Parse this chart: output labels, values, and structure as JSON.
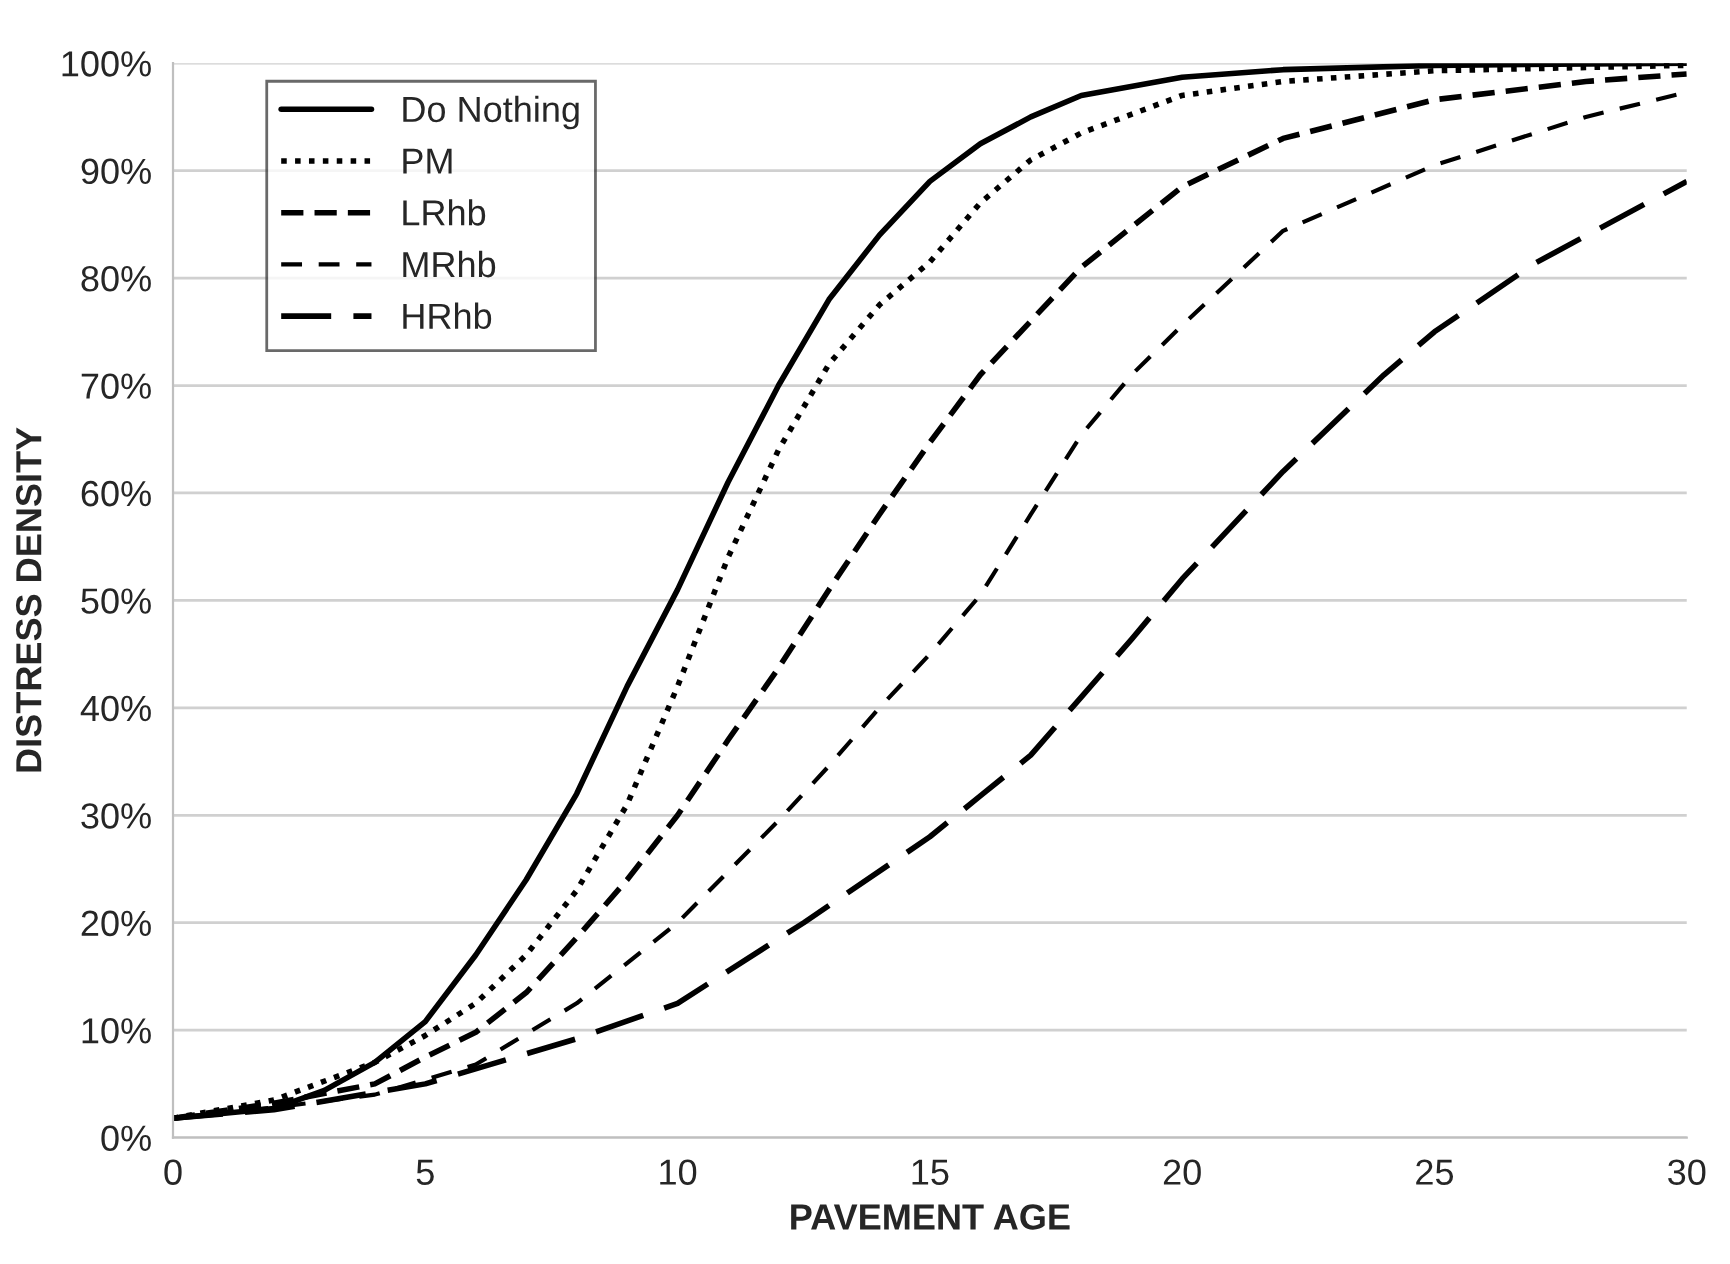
{
  "chart_data": {
    "type": "line",
    "xlabel": "PAVEMENT AGE",
    "ylabel": "DISTRESS DENSITY",
    "xlim": [
      0,
      30
    ],
    "xticks": [
      0,
      5,
      10,
      15,
      20,
      25,
      30
    ],
    "ylim": [
      0,
      100
    ],
    "yticks": [
      {
        "value": 0,
        "label": "0%"
      },
      {
        "value": 10,
        "label": "10%"
      },
      {
        "value": 20,
        "label": "20%"
      },
      {
        "value": 30,
        "label": "30%"
      },
      {
        "value": 40,
        "label": "40%"
      },
      {
        "value": 50,
        "label": "50%"
      },
      {
        "value": 60,
        "label": "60%"
      },
      {
        "value": 70,
        "label": "70%"
      },
      {
        "value": 80,
        "label": "80%"
      },
      {
        "value": 90,
        "label": "90%"
      },
      {
        "value": 100,
        "label": "100%"
      }
    ],
    "grid": "y",
    "legend": "top left",
    "marker": "none",
    "series": [
      {
        "name": "Do Nothing",
        "color": "#000000",
        "line_style": "solid",
        "x": [
          0,
          2,
          3,
          4,
          5,
          6,
          7,
          8,
          9,
          10,
          11,
          12,
          13,
          14,
          15,
          16,
          17,
          18,
          20,
          22,
          25,
          30
        ],
        "values": [
          1.8,
          2.7,
          4.4,
          7,
          10.8,
          17,
          24,
          32,
          42,
          51,
          61,
          70,
          78,
          84,
          89,
          92.5,
          95,
          97,
          98.7,
          99.4,
          99.8,
          100
        ]
      },
      {
        "name": "PM",
        "color": "#000000",
        "line_style": "dotted",
        "x": [
          0,
          2,
          4,
          5,
          6,
          7,
          8,
          9,
          10,
          11,
          12,
          13,
          14,
          15,
          16,
          17,
          18,
          20,
          22,
          25,
          30
        ],
        "values": [
          1.8,
          3.5,
          7,
          9.5,
          12.5,
          17,
          23,
          31,
          42,
          54,
          64,
          72,
          77.5,
          81.5,
          87,
          91,
          93.5,
          97,
          98.3,
          99.3,
          99.8
        ]
      },
      {
        "name": "LRhb",
        "color": "#000000",
        "line_style": "dashed",
        "x": [
          0,
          2,
          4,
          5,
          6,
          7,
          8,
          9,
          10,
          11,
          12,
          13,
          14,
          15,
          16,
          17,
          18,
          20,
          22,
          25,
          28,
          30
        ],
        "values": [
          1.8,
          3.2,
          5,
          7.5,
          9.8,
          13.5,
          18.6,
          24,
          30,
          37,
          43.7,
          51,
          58,
          64.7,
          71,
          76,
          81,
          88.5,
          93,
          96.6,
          98.3,
          99
        ]
      },
      {
        "name": "MRhb",
        "color": "#000000",
        "line_style": "dashed",
        "x": [
          0,
          2,
          4,
          6,
          8,
          10,
          12,
          13,
          14,
          15,
          16,
          17,
          18,
          19,
          20,
          22,
          25,
          28,
          30
        ],
        "values": [
          1.8,
          2.8,
          4,
          6.8,
          12.5,
          20,
          29.5,
          34.6,
          40,
          45,
          50.5,
          58,
          65.4,
          71,
          75.6,
          84.4,
          90.5,
          95,
          97.3
        ]
      },
      {
        "name": "HRhb",
        "color": "#000000",
        "line_style": "dashed",
        "x": [
          0,
          2,
          5,
          8,
          10,
          12.5,
          15,
          16,
          17,
          18,
          19,
          20,
          22,
          24,
          25,
          27,
          30
        ],
        "values": [
          1.8,
          2.6,
          5,
          9.2,
          12.5,
          20,
          28,
          31.8,
          35.6,
          41,
          46.4,
          52,
          62,
          71,
          75,
          81.4,
          89
        ]
      }
    ]
  }
}
